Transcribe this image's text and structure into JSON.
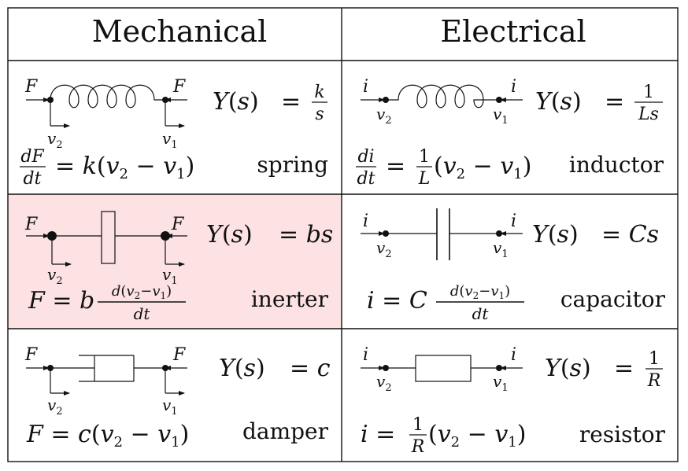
{
  "table": {
    "headers": {
      "mechanical": "Mechanical",
      "electrical": "Electrical"
    },
    "highlight_color": "#fde2e4",
    "rows": [
      {
        "mechanical": {
          "element": "spring",
          "admittance_lhs": "Y(s)",
          "admittance_rhs": "k/s",
          "equation": "dF/dt = k(v2 − v1)",
          "through_label": "F",
          "node_left": "v2",
          "node_right": "v1",
          "symbol": "spring-coil"
        },
        "electrical": {
          "element": "inductor",
          "admittance_lhs": "Y(s)",
          "admittance_rhs": "1/Ls",
          "equation": "di/dt = 1/L(v2 − v1)",
          "through_label": "i",
          "node_left": "v2",
          "node_right": "v1",
          "symbol": "inductor-coil"
        }
      },
      {
        "mechanical": {
          "element": "inerter",
          "admittance_lhs": "Y(s)",
          "admittance_rhs": "bs",
          "equation": "F = b d(v2−v1)/dt",
          "through_label": "F",
          "node_left": "v2",
          "node_right": "v1",
          "symbol": "inerter-box"
        },
        "electrical": {
          "element": "capacitor",
          "admittance_lhs": "Y(s)",
          "admittance_rhs": "Cs",
          "equation": "i = C d(v2−v1)/dt",
          "through_label": "i",
          "node_left": "v2",
          "node_right": "v1",
          "symbol": "capacitor-plates"
        }
      },
      {
        "mechanical": {
          "element": "damper",
          "admittance_lhs": "Y(s)",
          "admittance_rhs": "c",
          "equation": "F = c(v2 − v1)",
          "through_label": "F",
          "node_left": "v2",
          "node_right": "v1",
          "symbol": "dashpot"
        },
        "electrical": {
          "element": "resistor",
          "admittance_lhs": "Y(s)",
          "admittance_rhs": "1/R",
          "equation": "i = 1/R(v2 − v1)",
          "through_label": "i",
          "node_left": "v2",
          "node_right": "v1",
          "symbol": "resistor-box"
        }
      }
    ]
  }
}
